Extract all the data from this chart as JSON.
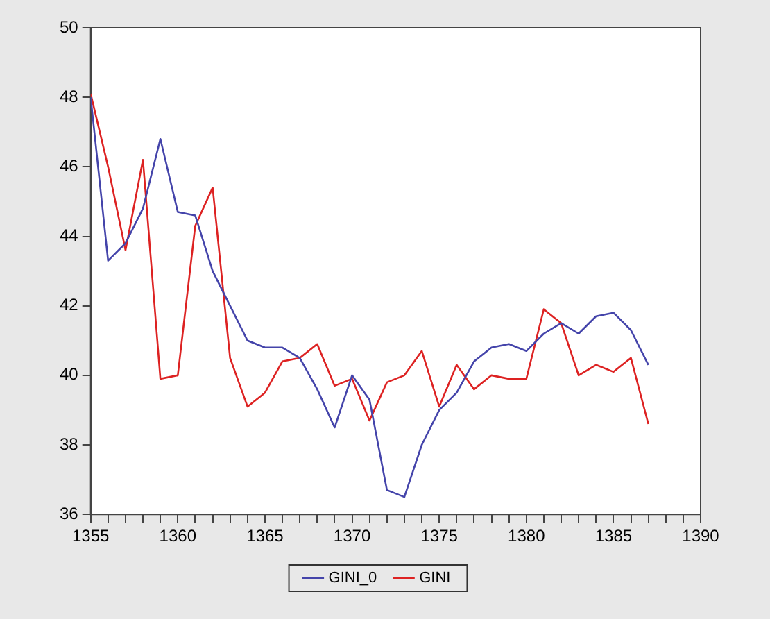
{
  "chart_data": {
    "type": "line",
    "x": [
      1355,
      1356,
      1357,
      1358,
      1359,
      1360,
      1361,
      1362,
      1363,
      1364,
      1365,
      1366,
      1367,
      1368,
      1369,
      1370,
      1371,
      1372,
      1373,
      1374,
      1375,
      1376,
      1377,
      1378,
      1379,
      1380,
      1381,
      1382,
      1383,
      1384,
      1385,
      1386,
      1387
    ],
    "series": [
      {
        "name": "GINI_0",
        "color": "#4444aa",
        "values": [
          48.0,
          43.3,
          43.8,
          44.8,
          46.8,
          44.7,
          44.6,
          43.0,
          42.0,
          41.0,
          40.8,
          40.8,
          40.5,
          39.6,
          38.5,
          40.0,
          39.3,
          36.7,
          36.5,
          38.0,
          39.0,
          39.5,
          40.4,
          40.8,
          40.9,
          40.7,
          41.2,
          41.5,
          41.2,
          41.7,
          41.8,
          41.3,
          40.3
        ]
      },
      {
        "name": "GINI",
        "color": "#dd2222",
        "values": [
          48.1,
          46.0,
          43.6,
          46.2,
          39.9,
          40.0,
          44.3,
          45.4,
          40.5,
          39.1,
          39.5,
          40.4,
          40.5,
          40.9,
          39.7,
          39.9,
          38.7,
          39.8,
          40.0,
          40.7,
          39.1,
          40.3,
          39.6,
          40.0,
          39.9,
          39.9,
          41.9,
          41.5,
          40.0,
          40.3,
          40.1,
          40.5,
          38.6
        ]
      }
    ],
    "xlim": [
      1355,
      1390
    ],
    "xticks": [
      1355,
      {
        "value": 1356,
        "label": null
      },
      {
        "value": 1357,
        "label": null
      },
      {
        "value": 1358,
        "label": null
      },
      {
        "value": 1359,
        "label": null
      },
      1360,
      {
        "value": 1361,
        "label": null
      },
      {
        "value": 1362,
        "label": null
      },
      {
        "value": 1363,
        "label": null
      },
      {
        "value": 1364,
        "label": null
      },
      1365,
      {
        "value": 1366,
        "label": null
      },
      {
        "value": 1367,
        "label": null
      },
      {
        "value": 1368,
        "label": null
      },
      {
        "value": 1369,
        "label": null
      },
      1370,
      {
        "value": 1371,
        "label": null
      },
      {
        "value": 1372,
        "label": null
      },
      {
        "value": 1373,
        "label": null
      },
      {
        "value": 1374,
        "label": null
      },
      1375,
      {
        "value": 1376,
        "label": null
      },
      {
        "value": 1377,
        "label": null
      },
      {
        "value": 1378,
        "label": null
      },
      {
        "value": 1379,
        "label": null
      },
      1380,
      {
        "value": 1381,
        "label": null
      },
      {
        "value": 1382,
        "label": null
      },
      {
        "value": 1383,
        "label": null
      },
      {
        "value": 1384,
        "label": null
      },
      1385,
      {
        "value": 1386,
        "label": null
      },
      {
        "value": 1387,
        "label": null
      },
      {
        "value": 1388,
        "label": null
      },
      {
        "value": 1389,
        "label": null
      },
      1390
    ],
    "ylim": [
      36,
      50
    ],
    "yticks": [
      36,
      38,
      40,
      42,
      44,
      46,
      48,
      50
    ],
    "grid": false,
    "legend": "bottom",
    "marker": "none",
    "line_style": "solid"
  }
}
